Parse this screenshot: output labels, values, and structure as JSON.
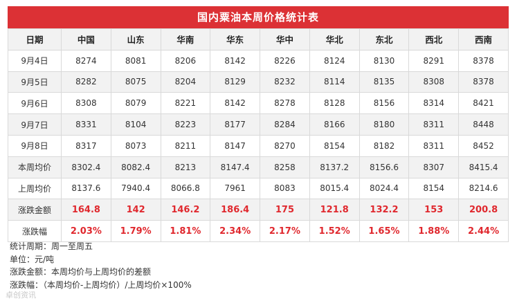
{
  "title": "国内粟油本周价格统计表",
  "columns": [
    "日期",
    "中国",
    "山东",
    "华南",
    "华东",
    "华中",
    "华北",
    "东北",
    "西北",
    "西南"
  ],
  "rows": [
    {
      "label": "9月4日",
      "values": [
        "8274",
        "8081",
        "8206",
        "8142",
        "8226",
        "8124",
        "8130",
        "8291",
        "8378"
      ]
    },
    {
      "label": "9月5日",
      "values": [
        "8282",
        "8075",
        "8204",
        "8129",
        "8232",
        "8114",
        "8135",
        "8308",
        "8378"
      ]
    },
    {
      "label": "9月6日",
      "values": [
        "8308",
        "8079",
        "8221",
        "8142",
        "8278",
        "8128",
        "8156",
        "8314",
        "8421"
      ]
    },
    {
      "label": "9月7日",
      "values": [
        "8331",
        "8104",
        "8223",
        "8177",
        "8284",
        "8166",
        "8180",
        "8311",
        "8448"
      ]
    },
    {
      "label": "9月8日",
      "values": [
        "8317",
        "8073",
        "8211",
        "8147",
        "8270",
        "8154",
        "8182",
        "8311",
        "8452"
      ]
    },
    {
      "label": "本周均价",
      "values": [
        "8302.4",
        "8082.4",
        "8213",
        "8147.4",
        "8258",
        "8137.2",
        "8156.6",
        "8307",
        "8415.4"
      ]
    },
    {
      "label": "上周均价",
      "values": [
        "8137.6",
        "7940.4",
        "8066.8",
        "7961",
        "8083",
        "8015.4",
        "8024.4",
        "8154",
        "8214.6"
      ]
    },
    {
      "label": "涨跌金额",
      "values": [
        "164.8",
        "142",
        "146.2",
        "186.4",
        "175",
        "121.8",
        "132.2",
        "153",
        "200.8"
      ],
      "highlight": true
    },
    {
      "label": "涨跌幅",
      "values": [
        "2.03%",
        "1.79%",
        "1.81%",
        "2.34%",
        "2.17%",
        "1.52%",
        "1.65%",
        "1.88%",
        "2.44%"
      ],
      "highlight": true
    }
  ],
  "notes": [
    "统计周期：周一至周五",
    "单位：元/吨",
    "涨跌金额：本周均价与上周均价的差额",
    "涨跌幅：（本周均价-上周均价）/上周均价×100%"
  ],
  "watermark": "卓创资讯",
  "colors": {
    "header_bg": "#dc3135",
    "highlight_text": "#e0282e",
    "alt_row_bg": "#f2f2f2"
  }
}
